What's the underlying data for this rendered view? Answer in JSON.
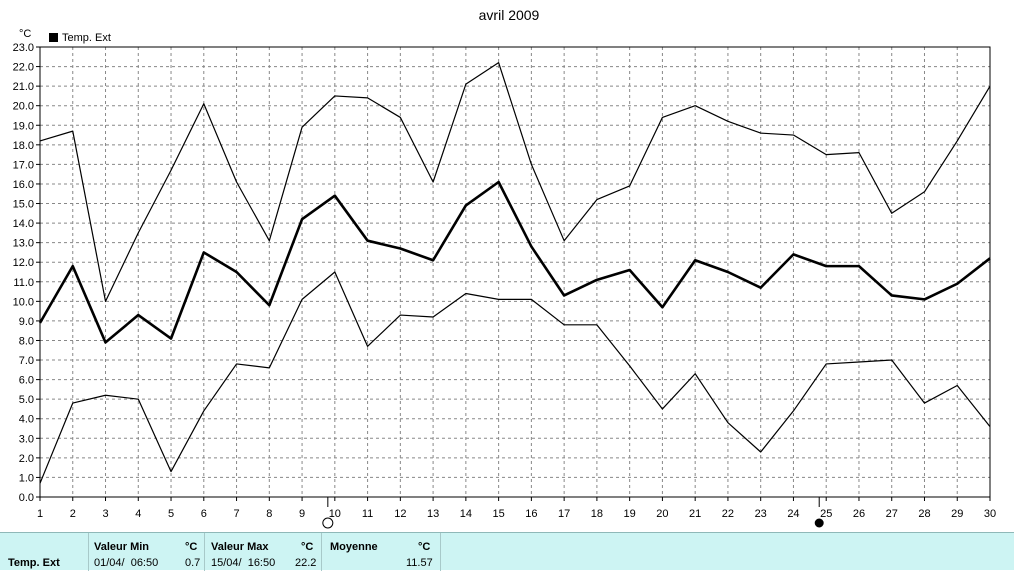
{
  "chart_data": {
    "type": "line",
    "title": "avril 2009",
    "ylabel": "°C",
    "legend": {
      "label": "Temp. Ext",
      "position": "top-left"
    },
    "ylim": [
      0,
      23
    ],
    "xlim": [
      1,
      30
    ],
    "grid": true,
    "x": [
      1,
      2,
      3,
      4,
      5,
      6,
      7,
      8,
      9,
      10,
      11,
      12,
      13,
      14,
      15,
      16,
      17,
      18,
      19,
      20,
      21,
      22,
      23,
      24,
      25,
      26,
      27,
      28,
      29,
      30
    ],
    "series": [
      {
        "role": "max",
        "stroke_width": 1.2,
        "values": [
          18.2,
          18.7,
          10.0,
          13.5,
          16.7,
          20.1,
          16.1,
          13.1,
          18.9,
          20.5,
          20.4,
          19.4,
          16.1,
          21.1,
          22.2,
          17.0,
          13.1,
          15.2,
          15.9,
          19.4,
          20.0,
          19.2,
          18.6,
          18.5,
          17.5,
          17.6,
          14.5,
          15.6,
          18.2,
          21.0
        ]
      },
      {
        "role": "mean",
        "stroke_width": 2.6,
        "values": [
          8.9,
          11.8,
          7.9,
          9.3,
          8.1,
          12.5,
          11.5,
          9.8,
          14.2,
          15.4,
          13.1,
          12.7,
          12.1,
          14.9,
          16.1,
          12.8,
          10.3,
          11.1,
          11.6,
          9.7,
          12.1,
          11.5,
          10.7,
          12.4,
          11.8,
          11.8,
          10.3,
          10.1,
          10.9,
          12.2
        ]
      },
      {
        "role": "min",
        "stroke_width": 1.2,
        "values": [
          0.7,
          4.8,
          5.2,
          5.0,
          1.3,
          4.4,
          6.8,
          6.6,
          10.1,
          11.5,
          7.7,
          9.3,
          9.2,
          10.4,
          10.1,
          10.1,
          8.8,
          8.8,
          6.7,
          4.5,
          6.3,
          3.8,
          2.3,
          4.4,
          6.8,
          6.9,
          7.0,
          4.8,
          5.7,
          3.6
        ]
      }
    ],
    "moon_phases": [
      {
        "x": 10,
        "phase": "full-moon"
      },
      {
        "x": 25,
        "phase": "new-moon"
      }
    ]
  },
  "stats": {
    "series_label": "Temp. Ext",
    "min": {
      "label": "Valeur Min",
      "unit": "°C",
      "date": "01/04/  06:50",
      "value": "0.7"
    },
    "max": {
      "label": "Valeur Max",
      "unit": "°C",
      "date": "15/04/  16:50",
      "value": "22.2"
    },
    "mean": {
      "label": "Moyenne",
      "unit": "°C",
      "value": "11.57"
    }
  }
}
